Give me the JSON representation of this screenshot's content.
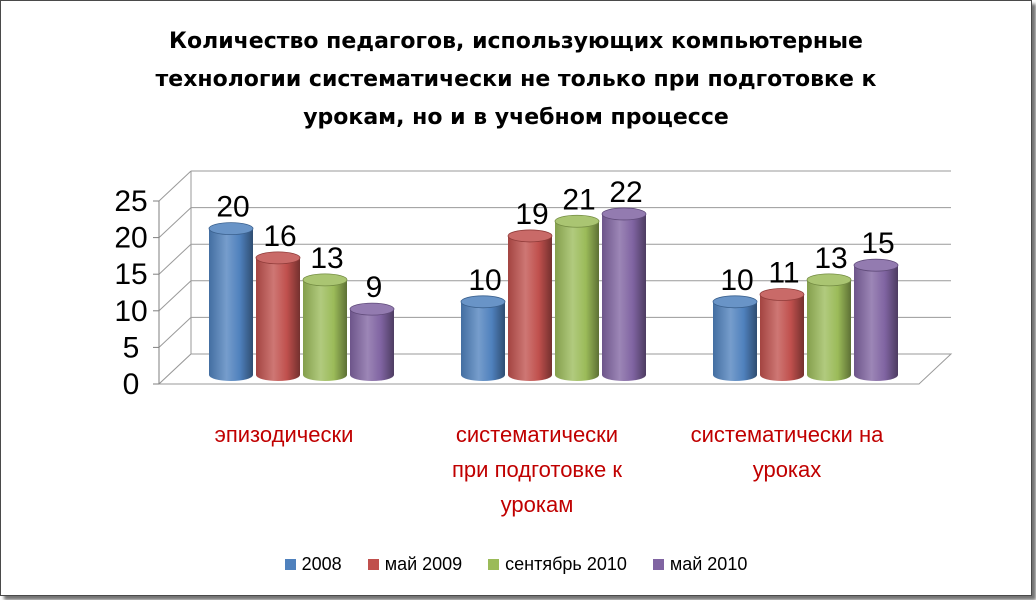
{
  "chart_data": {
    "type": "bar",
    "title_lines": [
      "Количество педагогов, использующих  компьютерные",
      "технологии систематически не только при подготовке к",
      "урокам, но и в учебном процессе"
    ],
    "categories": [
      [
        "эпизодически"
      ],
      [
        "систематически",
        "при подготовке к",
        "урокам"
      ],
      [
        "систематически на",
        "уроках"
      ]
    ],
    "series": [
      {
        "name": "2008",
        "color": "#4F81BD",
        "values": [
          20,
          10,
          10
        ]
      },
      {
        "name": "май 2009",
        "color": "#C0504D",
        "values": [
          16,
          19,
          11
        ]
      },
      {
        "name": "сентябрь 2010",
        "color": "#9BBB59",
        "values": [
          13,
          21,
          13
        ]
      },
      {
        "name": "май 2010",
        "color": "#8064A2",
        "values": [
          9,
          22,
          15
        ]
      }
    ],
    "y_ticks": [
      "0",
      "5",
      "10",
      "15",
      "20",
      "25"
    ],
    "ylim": [
      0,
      25
    ],
    "grid": true,
    "data_labels": true,
    "category_label_color": "#C00000",
    "legend_position": "bottom"
  }
}
